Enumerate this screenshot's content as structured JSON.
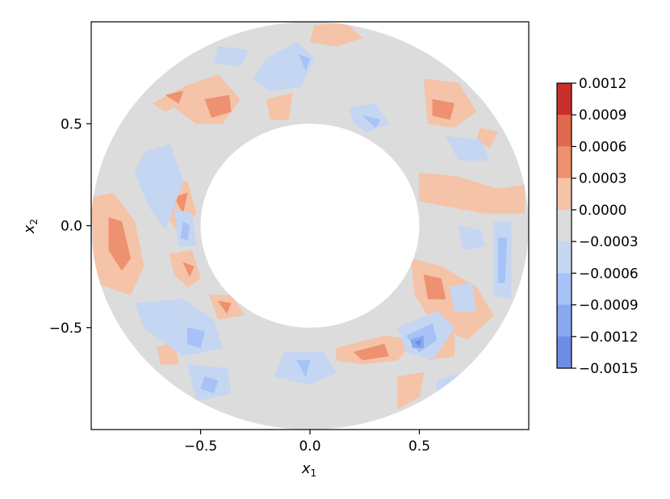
{
  "chart_data": {
    "type": "contourf",
    "title": "",
    "xlabel": "x",
    "xlabel_sub": "1",
    "ylabel": "x",
    "ylabel_sub": "2",
    "xlim": [
      -1.0,
      1.0
    ],
    "ylim": [
      -1.0,
      1.0
    ],
    "domain": {
      "shape": "annulus",
      "inner_radius": 0.5,
      "outer_radius": 1.0
    },
    "x_ticks": [
      -0.5,
      0.0,
      0.5
    ],
    "x_tick_labels": [
      "−0.5",
      "0.0",
      "0.5"
    ],
    "y_ticks": [
      0.5,
      0.0,
      -0.5
    ],
    "y_tick_labels": [
      "0.5",
      "0.0",
      "−0.5"
    ],
    "colorbar": {
      "colormap": "coolwarm",
      "levels": [
        0.0012,
        0.0009,
        0.0006,
        0.0003,
        0.0,
        -0.0003,
        -0.0006,
        -0.0009,
        -0.0012,
        -0.0015
      ],
      "tick_labels": [
        "0.0012",
        "0.0009",
        "0.0006",
        "0.0003",
        "0.0000",
        "−0.0003",
        "−0.0006",
        "−0.0009",
        "−0.0012",
        "−0.0015"
      ],
      "band_colors": [
        "#c9302c",
        "#e06a4e",
        "#ee9170",
        "#f5c3a8",
        "#dcdcdc",
        "#c5d6f2",
        "#a6c2f6",
        "#8aa8f0",
        "#6e8ee6",
        "#4764cf"
      ]
    },
    "grid": false,
    "colors": {
      "zero_band": "#dcdcdc",
      "pos_1": "#f5c3a8",
      "pos_2": "#ee9170",
      "pos_3": "#e06a4e",
      "neg_1": "#c5d6f2",
      "neg_2": "#a6c2f6",
      "neg_3": "#8aa8f0",
      "neg_4": "#6e8ee6",
      "neg_5": "#4764cf"
    },
    "regions": [
      {
        "level": 1,
        "points": [
          [
            -0.58,
            0.68
          ],
          [
            -0.42,
            0.74
          ],
          [
            -0.32,
            0.62
          ],
          [
            -0.4,
            0.5
          ],
          [
            -0.52,
            0.5
          ],
          [
            -0.62,
            0.58
          ]
        ]
      },
      {
        "level": 2,
        "points": [
          [
            -0.48,
            0.62
          ],
          [
            -0.37,
            0.64
          ],
          [
            -0.36,
            0.56
          ],
          [
            -0.45,
            0.53
          ]
        ]
      },
      {
        "level": 1,
        "points": [
          [
            -0.72,
            0.6
          ],
          [
            -0.54,
            0.7
          ],
          [
            -0.52,
            0.64
          ],
          [
            -0.66,
            0.56
          ]
        ]
      },
      {
        "level": 2,
        "points": [
          [
            -0.66,
            0.64
          ],
          [
            -0.58,
            0.66
          ],
          [
            -0.6,
            0.6
          ]
        ]
      },
      {
        "level": 1,
        "points": [
          [
            -0.2,
            0.62
          ],
          [
            -0.08,
            0.65
          ],
          [
            -0.1,
            0.52
          ],
          [
            -0.18,
            0.52
          ]
        ]
      },
      {
        "level": 1,
        "points": [
          [
            0.02,
            0.98
          ],
          [
            0.16,
            1.0
          ],
          [
            0.24,
            0.92
          ],
          [
            0.12,
            0.88
          ],
          [
            0.0,
            0.9
          ]
        ]
      },
      {
        "level": 1,
        "points": [
          [
            0.52,
            0.72
          ],
          [
            0.68,
            0.7
          ],
          [
            0.76,
            0.56
          ],
          [
            0.66,
            0.48
          ],
          [
            0.54,
            0.5
          ]
        ]
      },
      {
        "level": 2,
        "points": [
          [
            0.56,
            0.62
          ],
          [
            0.66,
            0.6
          ],
          [
            0.64,
            0.52
          ],
          [
            0.56,
            0.54
          ]
        ]
      },
      {
        "level": 1,
        "points": [
          [
            0.78,
            0.48
          ],
          [
            0.86,
            0.46
          ],
          [
            0.82,
            0.38
          ],
          [
            0.76,
            0.42
          ]
        ]
      },
      {
        "level": 1,
        "points": [
          [
            0.5,
            0.26
          ],
          [
            0.68,
            0.24
          ],
          [
            0.86,
            0.18
          ],
          [
            0.98,
            0.2
          ],
          [
            0.98,
            0.06
          ],
          [
            0.8,
            0.06
          ],
          [
            0.6,
            0.1
          ],
          [
            0.5,
            0.12
          ]
        ]
      },
      {
        "level": 1,
        "points": [
          [
            -1.0,
            0.14
          ],
          [
            -0.9,
            0.16
          ],
          [
            -0.8,
            0.02
          ],
          [
            -0.76,
            -0.2
          ],
          [
            -0.82,
            -0.34
          ],
          [
            -0.98,
            -0.28
          ]
        ]
      },
      {
        "level": 2,
        "points": [
          [
            -0.92,
            0.04
          ],
          [
            -0.86,
            0.02
          ],
          [
            -0.82,
            -0.16
          ],
          [
            -0.86,
            -0.22
          ],
          [
            -0.92,
            -0.12
          ]
        ]
      },
      {
        "level": 1,
        "points": [
          [
            -0.66,
            0.2
          ],
          [
            -0.56,
            0.22
          ],
          [
            -0.52,
            0.06
          ],
          [
            -0.6,
            -0.04
          ],
          [
            -0.66,
            0.06
          ]
        ]
      },
      {
        "level": 2,
        "points": [
          [
            -0.62,
            0.14
          ],
          [
            -0.56,
            0.16
          ],
          [
            -0.58,
            0.06
          ]
        ]
      },
      {
        "level": 1,
        "points": [
          [
            -0.64,
            -0.14
          ],
          [
            -0.54,
            -0.12
          ],
          [
            -0.5,
            -0.26
          ],
          [
            -0.56,
            -0.3
          ],
          [
            -0.62,
            -0.24
          ]
        ]
      },
      {
        "level": 2,
        "points": [
          [
            -0.58,
            -0.18
          ],
          [
            -0.53,
            -0.2
          ],
          [
            -0.55,
            -0.25
          ]
        ]
      },
      {
        "level": 1,
        "points": [
          [
            -0.46,
            -0.34
          ],
          [
            -0.36,
            -0.34
          ],
          [
            -0.3,
            -0.44
          ],
          [
            -0.42,
            -0.46
          ]
        ]
      },
      {
        "level": 2,
        "points": [
          [
            -0.42,
            -0.37
          ],
          [
            -0.36,
            -0.38
          ],
          [
            -0.38,
            -0.43
          ]
        ]
      },
      {
        "level": 1,
        "points": [
          [
            0.12,
            -0.6
          ],
          [
            0.34,
            -0.54
          ],
          [
            0.48,
            -0.56
          ],
          [
            0.4,
            -0.66
          ],
          [
            0.24,
            -0.68
          ],
          [
            0.12,
            -0.66
          ]
        ]
      },
      {
        "level": 2,
        "points": [
          [
            0.2,
            -0.62
          ],
          [
            0.34,
            -0.58
          ],
          [
            0.36,
            -0.64
          ],
          [
            0.24,
            -0.66
          ]
        ]
      },
      {
        "level": 1,
        "points": [
          [
            0.46,
            -0.16
          ],
          [
            0.6,
            -0.2
          ],
          [
            0.76,
            -0.3
          ],
          [
            0.84,
            -0.44
          ],
          [
            0.72,
            -0.56
          ],
          [
            0.56,
            -0.48
          ],
          [
            0.48,
            -0.34
          ]
        ]
      },
      {
        "level": 2,
        "points": [
          [
            0.52,
            -0.24
          ],
          [
            0.6,
            -0.26
          ],
          [
            0.62,
            -0.36
          ],
          [
            0.54,
            -0.36
          ]
        ]
      },
      {
        "level": 1,
        "points": [
          [
            0.54,
            -0.58
          ],
          [
            0.66,
            -0.52
          ],
          [
            0.66,
            -0.64
          ],
          [
            0.54,
            -0.66
          ]
        ]
      },
      {
        "level": 1,
        "points": [
          [
            0.4,
            -0.74
          ],
          [
            0.52,
            -0.72
          ],
          [
            0.5,
            -0.84
          ],
          [
            0.4,
            -0.9
          ]
        ]
      },
      {
        "level": 1,
        "points": [
          [
            -0.7,
            -0.6
          ],
          [
            -0.62,
            -0.56
          ],
          [
            -0.6,
            -0.68
          ],
          [
            -0.68,
            -0.68
          ]
        ]
      },
      {
        "level": -1,
        "points": [
          [
            -0.2,
            0.82
          ],
          [
            -0.06,
            0.9
          ],
          [
            0.02,
            0.82
          ],
          [
            -0.04,
            0.68
          ],
          [
            -0.18,
            0.66
          ],
          [
            -0.26,
            0.72
          ]
        ]
      },
      {
        "level": -2,
        "points": [
          [
            -0.05,
            0.84
          ],
          [
            0.0,
            0.82
          ],
          [
            -0.02,
            0.76
          ]
        ]
      },
      {
        "level": -1,
        "points": [
          [
            -0.42,
            0.88
          ],
          [
            -0.28,
            0.86
          ],
          [
            -0.32,
            0.78
          ],
          [
            -0.44,
            0.8
          ]
        ]
      },
      {
        "level": -1,
        "points": [
          [
            0.18,
            0.58
          ],
          [
            0.3,
            0.6
          ],
          [
            0.36,
            0.5
          ],
          [
            0.26,
            0.46
          ],
          [
            0.2,
            0.5
          ]
        ]
      },
      {
        "level": -2,
        "points": [
          [
            0.24,
            0.54
          ],
          [
            0.32,
            0.52
          ],
          [
            0.3,
            0.48
          ]
        ]
      },
      {
        "level": -1,
        "points": [
          [
            0.62,
            0.44
          ],
          [
            0.78,
            0.42
          ],
          [
            0.82,
            0.32
          ],
          [
            0.68,
            0.32
          ]
        ]
      },
      {
        "level": -1,
        "points": [
          [
            -0.76,
            0.36
          ],
          [
            -0.64,
            0.4
          ],
          [
            -0.58,
            0.22
          ],
          [
            -0.66,
            -0.02
          ],
          [
            -0.74,
            0.1
          ],
          [
            -0.8,
            0.26
          ]
        ]
      },
      {
        "level": -1,
        "points": [
          [
            -0.62,
            0.08
          ],
          [
            -0.54,
            0.06
          ],
          [
            -0.52,
            -0.1
          ],
          [
            -0.6,
            -0.1
          ]
        ]
      },
      {
        "level": -2,
        "points": [
          [
            -0.58,
            0.02
          ],
          [
            -0.55,
            0.0
          ],
          [
            -0.56,
            -0.07
          ],
          [
            -0.59,
            -0.06
          ]
        ]
      },
      {
        "level": -1,
        "points": [
          [
            -0.8,
            -0.38
          ],
          [
            -0.58,
            -0.36
          ],
          [
            -0.44,
            -0.46
          ],
          [
            -0.4,
            -0.6
          ],
          [
            -0.58,
            -0.64
          ],
          [
            -0.76,
            -0.5
          ]
        ]
      },
      {
        "level": -2,
        "points": [
          [
            -0.56,
            -0.5
          ],
          [
            -0.48,
            -0.52
          ],
          [
            -0.5,
            -0.6
          ],
          [
            -0.56,
            -0.58
          ]
        ]
      },
      {
        "level": -1,
        "points": [
          [
            -0.12,
            -0.62
          ],
          [
            0.06,
            -0.62
          ],
          [
            0.12,
            -0.72
          ],
          [
            0.0,
            -0.78
          ],
          [
            -0.16,
            -0.74
          ]
        ]
      },
      {
        "level": -2,
        "points": [
          [
            -0.06,
            -0.66
          ],
          [
            0.0,
            -0.66
          ],
          [
            -0.02,
            -0.74
          ]
        ]
      },
      {
        "level": -1,
        "points": [
          [
            -0.56,
            -0.68
          ],
          [
            -0.38,
            -0.7
          ],
          [
            -0.36,
            -0.82
          ],
          [
            -0.52,
            -0.86
          ]
        ]
      },
      {
        "level": -2,
        "points": [
          [
            -0.48,
            -0.74
          ],
          [
            -0.42,
            -0.76
          ],
          [
            -0.44,
            -0.82
          ],
          [
            -0.5,
            -0.8
          ]
        ]
      },
      {
        "level": -1,
        "points": [
          [
            0.4,
            -0.5
          ],
          [
            0.58,
            -0.42
          ],
          [
            0.66,
            -0.5
          ],
          [
            0.56,
            -0.66
          ],
          [
            0.44,
            -0.62
          ]
        ]
      },
      {
        "level": -2,
        "points": [
          [
            0.44,
            -0.54
          ],
          [
            0.56,
            -0.48
          ],
          [
            0.58,
            -0.56
          ],
          [
            0.5,
            -0.62
          ]
        ]
      },
      {
        "level": -3,
        "points": [
          [
            0.46,
            -0.56
          ],
          [
            0.52,
            -0.54
          ],
          [
            0.52,
            -0.6
          ],
          [
            0.47,
            -0.6
          ]
        ]
      },
      {
        "level": -4,
        "points": [
          [
            0.48,
            -0.57
          ],
          [
            0.51,
            -0.56
          ],
          [
            0.5,
            -0.59
          ]
        ]
      },
      {
        "level": -1,
        "points": [
          [
            0.84,
            0.02
          ],
          [
            0.92,
            0.02
          ],
          [
            0.92,
            -0.36
          ],
          [
            0.84,
            -0.34
          ]
        ]
      },
      {
        "level": -2,
        "points": [
          [
            0.86,
            -0.06
          ],
          [
            0.9,
            -0.06
          ],
          [
            0.89,
            -0.28
          ],
          [
            0.86,
            -0.28
          ]
        ]
      },
      {
        "level": -1,
        "points": [
          [
            0.68,
            0.0
          ],
          [
            0.78,
            -0.02
          ],
          [
            0.8,
            -0.1
          ],
          [
            0.7,
            -0.12
          ]
        ]
      },
      {
        "level": -1,
        "points": [
          [
            0.64,
            -0.3
          ],
          [
            0.74,
            -0.28
          ],
          [
            0.76,
            -0.42
          ],
          [
            0.66,
            -0.42
          ]
        ]
      },
      {
        "level": -1,
        "points": [
          [
            0.58,
            -0.76
          ],
          [
            0.7,
            -0.72
          ],
          [
            0.68,
            -0.82
          ],
          [
            0.58,
            -0.84
          ]
        ]
      }
    ]
  }
}
